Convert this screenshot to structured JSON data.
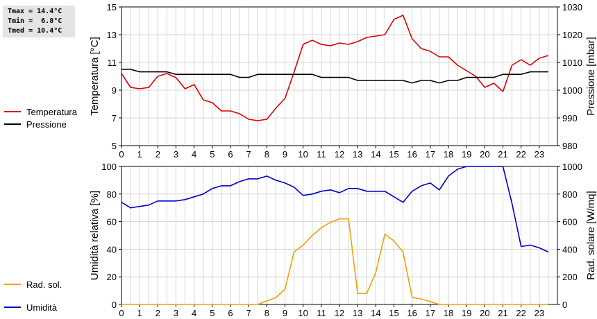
{
  "stats": {
    "tmax": "Tmax = 14.4°C",
    "tmin": "Tmin =  6.8°C",
    "tmed": "Tmed = 10.4°C"
  },
  "colors": {
    "temperature": "#dd0000",
    "pressure": "#000000",
    "humidity": "#0000cc",
    "radiation": "#f0a000",
    "grid": "#d4d4d4"
  },
  "chart_data": [
    {
      "type": "line",
      "ylabel": "Temperatura [°C]",
      "y2label": "Pressione [mbar]",
      "xlim": [
        0,
        24
      ],
      "x_ticks": [
        0,
        1,
        2,
        3,
        4,
        5,
        6,
        7,
        8,
        9,
        10,
        11,
        12,
        13,
        14,
        15,
        16,
        17,
        18,
        19,
        20,
        21,
        22,
        23
      ],
      "ylim": [
        5,
        15
      ],
      "y_ticks": [
        5,
        7,
        9,
        11,
        13,
        15
      ],
      "y2lim": [
        980,
        1030
      ],
      "y2_ticks": [
        980,
        990,
        1000,
        1010,
        1020,
        1030
      ],
      "grid": true,
      "legend_position": "left",
      "x": [
        0,
        0.5,
        1,
        1.5,
        2,
        2.5,
        3,
        3.5,
        4,
        4.5,
        5,
        5.5,
        6,
        6.5,
        7,
        7.5,
        8,
        8.5,
        9,
        9.5,
        10,
        10.5,
        11,
        11.5,
        12,
        12.5,
        13,
        13.5,
        14,
        14.5,
        15,
        15.5,
        16,
        16.5,
        17,
        17.5,
        18,
        18.5,
        19,
        19.5,
        20,
        20.5,
        21,
        21.5,
        22,
        22.5,
        23,
        23.5
      ],
      "series": [
        {
          "name": "Temperatura",
          "axis": "left",
          "color": "#dd0000",
          "values": [
            10.2,
            9.2,
            9.1,
            9.2,
            10.0,
            10.2,
            9.9,
            9.1,
            9.4,
            8.3,
            8.1,
            7.5,
            7.5,
            7.3,
            6.9,
            6.8,
            6.9,
            7.7,
            8.4,
            10.3,
            12.3,
            12.6,
            12.3,
            12.2,
            12.4,
            12.3,
            12.5,
            12.8,
            12.9,
            13.0,
            14.1,
            14.4,
            12.7,
            12.0,
            11.8,
            11.4,
            11.4,
            10.8,
            10.4,
            10.0,
            9.2,
            9.5,
            8.9,
            10.8,
            11.2,
            10.8,
            11.3,
            11.5
          ]
        },
        {
          "name": "Pressione",
          "axis": "right",
          "color": "#000000",
          "values": [
            1007.5,
            1007.5,
            1006.6,
            1006.6,
            1006.6,
            1006.6,
            1005.7,
            1005.7,
            1005.7,
            1005.7,
            1005.7,
            1005.7,
            1005.7,
            1004.6,
            1004.6,
            1005.7,
            1005.7,
            1005.7,
            1005.7,
            1005.7,
            1005.7,
            1005.7,
            1004.6,
            1004.6,
            1004.6,
            1004.6,
            1003.5,
            1003.5,
            1003.5,
            1003.5,
            1003.5,
            1003.5,
            1002.6,
            1003.5,
            1003.5,
            1002.6,
            1003.5,
            1003.5,
            1004.6,
            1004.6,
            1004.6,
            1004.6,
            1005.7,
            1005.7,
            1005.7,
            1006.6,
            1006.6,
            1006.6
          ]
        }
      ]
    },
    {
      "type": "line",
      "ylabel": "Umidità relativa [%]",
      "y2label": "Rad. solare [W/mq]",
      "xlim": [
        0,
        24
      ],
      "x_ticks": [
        0,
        1,
        2,
        3,
        4,
        5,
        6,
        7,
        8,
        9,
        10,
        11,
        12,
        13,
        14,
        15,
        16,
        17,
        18,
        19,
        20,
        21,
        22,
        23
      ],
      "ylim": [
        0,
        100
      ],
      "y_ticks": [
        0,
        20,
        40,
        60,
        80,
        100
      ],
      "y2lim": [
        0,
        1000
      ],
      "y2_ticks": [
        0,
        200,
        400,
        600,
        800,
        1000
      ],
      "grid": true,
      "legend_position": "left",
      "series": [
        {
          "name": "Umidità",
          "axis": "left",
          "color": "#0000cc",
          "x": [
            0,
            0.5,
            1,
            1.5,
            2,
            2.5,
            3,
            3.5,
            4,
            4.5,
            5,
            5.5,
            6,
            6.5,
            7,
            7.5,
            8,
            8.5,
            9,
            9.5,
            10,
            10.5,
            11,
            11.5,
            12,
            12.5,
            13,
            13.5,
            14,
            14.5,
            15,
            15.5,
            16,
            16.5,
            17,
            17.5,
            18,
            18.5,
            19,
            19.5,
            20,
            20.5,
            21,
            21.5,
            22,
            22.5,
            23,
            23.5
          ],
          "values": [
            74,
            70,
            71,
            72,
            75,
            75,
            75,
            76,
            78,
            80,
            84,
            86,
            86,
            89,
            91,
            91,
            93,
            90,
            88,
            85,
            79,
            80,
            82,
            83,
            81,
            84,
            84,
            82,
            82,
            82,
            78,
            74,
            82,
            86,
            88,
            83,
            93,
            98,
            100,
            100,
            100,
            100,
            100,
            73,
            42,
            43,
            41,
            38
          ]
        },
        {
          "name": "Rad. sol.",
          "axis": "right",
          "color": "#f0a000",
          "x": [
            0,
            1,
            2,
            3,
            4,
            5,
            6,
            7,
            7.5,
            8,
            8.5,
            9,
            9.5,
            10,
            10.5,
            11,
            11.5,
            12,
            12.5,
            13,
            13.5,
            14,
            14.5,
            15,
            15.5,
            16,
            16.5,
            17,
            17.5,
            18,
            19,
            20,
            21,
            22,
            23,
            23.5
          ],
          "values": [
            0,
            0,
            0,
            0,
            0,
            0,
            0,
            0,
            0,
            25,
            50,
            110,
            380,
            430,
            500,
            555,
            595,
            620,
            620,
            80,
            80,
            230,
            510,
            460,
            380,
            50,
            40,
            20,
            0,
            0,
            0,
            0,
            0,
            0,
            0,
            0
          ]
        }
      ]
    }
  ]
}
